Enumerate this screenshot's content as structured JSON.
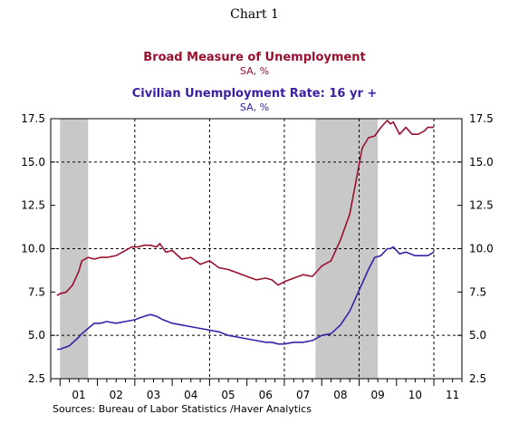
{
  "header": {
    "title": "Chart 1"
  },
  "source": "Sources:  Bureau of Labor Statistics /Haver Analytics",
  "chart_data": {
    "type": "line",
    "series_titles": [
      {
        "title": "Broad Measure of Unemployment",
        "unit": "SA, %",
        "color": "#99102f"
      },
      {
        "title": "Civilian Unemployment Rate: 16 yr +",
        "unit": "SA, %",
        "color": "#3b1fa6"
      }
    ],
    "ylim": [
      2.5,
      17.5
    ],
    "yticks": [
      2.5,
      5.0,
      7.5,
      10.0,
      12.5,
      15.0,
      17.5
    ],
    "ytick_labels": [
      "2.5",
      "5.0",
      "7.5",
      "10.0",
      "12.5",
      "15.0",
      "17.5"
    ],
    "xlim": [
      2000.75,
      2011.75
    ],
    "year_labels": [
      "01",
      "02",
      "03",
      "04",
      "05",
      "06",
      "07",
      "08",
      "09",
      "10",
      "11"
    ],
    "year_label_positions": [
      2001.5,
      2002.5,
      2003.5,
      2004.5,
      2005.5,
      2006.5,
      2007.5,
      2008.5,
      2009.5,
      2010.5,
      2011.5
    ],
    "vertical_gridlines": [
      2003,
      2005,
      2007,
      2009,
      2011
    ],
    "horizontal_gridlines": [
      5.0,
      10.0,
      15.0
    ],
    "recessions": [
      [
        2001.0,
        2001.75
      ],
      [
        2007.833,
        2009.5
      ]
    ],
    "recession_color": "#c8c8c8",
    "series": [
      {
        "name": "Broad Measure of Unemployment",
        "color": "#99102f",
        "x": [
          2000.917,
          2001.0,
          2001.167,
          2001.333,
          2001.5,
          2001.583,
          2001.75,
          2001.917,
          2002.083,
          2002.25,
          2002.5,
          2002.75,
          2002.917,
          2003.083,
          2003.25,
          2003.417,
          2003.583,
          2003.667,
          2003.833,
          2004.0,
          2004.25,
          2004.5,
          2004.75,
          2005.0,
          2005.25,
          2005.5,
          2005.75,
          2006.0,
          2006.25,
          2006.5,
          2006.667,
          2006.833,
          2007.0,
          2007.25,
          2007.5,
          2007.75,
          2008.0,
          2008.25,
          2008.5,
          2008.75,
          2008.917,
          2009.083,
          2009.25,
          2009.417,
          2009.583,
          2009.75,
          2009.833,
          2009.917,
          2010.083,
          2010.25,
          2010.417,
          2010.583,
          2010.75,
          2010.833,
          2011.0
        ],
        "values": [
          7.3,
          7.4,
          7.5,
          7.9,
          8.7,
          9.3,
          9.5,
          9.4,
          9.5,
          9.5,
          9.6,
          9.9,
          10.1,
          10.1,
          10.2,
          10.2,
          10.1,
          10.3,
          9.8,
          9.9,
          9.4,
          9.5,
          9.1,
          9.3,
          8.9,
          8.8,
          8.6,
          8.4,
          8.2,
          8.3,
          8.2,
          7.9,
          8.1,
          8.3,
          8.5,
          8.4,
          9.0,
          9.3,
          10.5,
          12.0,
          13.9,
          15.8,
          16.4,
          16.5,
          17.0,
          17.4,
          17.2,
          17.3,
          16.6,
          17.0,
          16.6,
          16.6,
          16.8,
          17.0,
          17.0
        ]
      },
      {
        "name": "Civilian Unemployment Rate: 16 yr +",
        "color": "#3b1fa6",
        "x": [
          2000.917,
          2001.0,
          2001.25,
          2001.5,
          2001.583,
          2001.75,
          2001.917,
          2002.083,
          2002.25,
          2002.5,
          2002.75,
          2003.0,
          2003.25,
          2003.417,
          2003.583,
          2003.75,
          2004.0,
          2004.25,
          2004.5,
          2004.75,
          2005.0,
          2005.25,
          2005.5,
          2005.75,
          2006.0,
          2006.25,
          2006.5,
          2006.667,
          2006.833,
          2007.0,
          2007.25,
          2007.5,
          2007.75,
          2008.0,
          2008.25,
          2008.5,
          2008.75,
          2009.0,
          2009.25,
          2009.417,
          2009.583,
          2009.75,
          2009.833,
          2009.917,
          2010.083,
          2010.25,
          2010.5,
          2010.75,
          2010.833,
          2011.0
        ],
        "values": [
          4.2,
          4.2,
          4.4,
          4.9,
          5.1,
          5.4,
          5.7,
          5.7,
          5.8,
          5.7,
          5.8,
          5.9,
          6.1,
          6.2,
          6.1,
          5.9,
          5.7,
          5.6,
          5.5,
          5.4,
          5.3,
          5.2,
          5.0,
          4.9,
          4.8,
          4.7,
          4.6,
          4.6,
          4.5,
          4.5,
          4.6,
          4.6,
          4.7,
          5.0,
          5.1,
          5.6,
          6.4,
          7.6,
          8.8,
          9.5,
          9.6,
          10.0,
          10.0,
          10.1,
          9.7,
          9.8,
          9.6,
          9.6,
          9.6,
          9.8
        ]
      }
    ]
  }
}
